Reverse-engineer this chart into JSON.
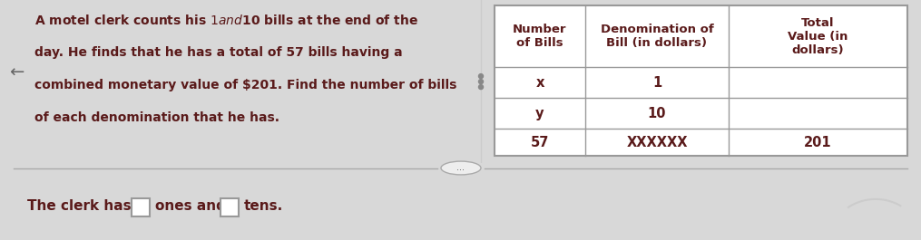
{
  "fig_bg": "#d8d8d8",
  "top_panel_bg": "#f5f5f5",
  "bottom_panel_bg": "#ffffff",
  "text_color": "#5a1a1a",
  "arrow_symbol": "←",
  "problem_lines": [
    "A motel clerk counts his $1 and $10 bills at the end of the",
    "day. He finds that he has a total of 57 bills having a",
    "combined monetary value of $201. Find the number of bills",
    "of each denomination that he has."
  ],
  "table_headers": [
    "Number\nof Bills",
    "Denomination of\nBill (in dollars)",
    "Total\nValue (in\ndollars)"
  ],
  "table_rows": [
    [
      "x",
      "1",
      ""
    ],
    [
      "y",
      "10",
      ""
    ],
    [
      "57",
      "XXXXXX",
      "201"
    ]
  ],
  "bottom_text_parts": [
    "The clerk has",
    "ones and",
    "tens."
  ],
  "divider_color": "#aaaaaa",
  "table_border_color": "#999999",
  "box_border_color": "#999999"
}
